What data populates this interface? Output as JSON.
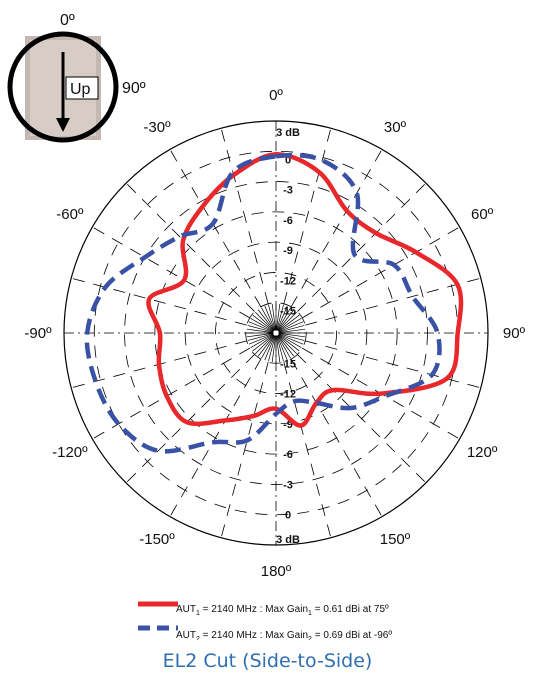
{
  "phone_indicator": {
    "top_label": "0º",
    "right_label": "90º",
    "device_label": "Up"
  },
  "caption": "EL2 Cut (Side-to-Side)",
  "legend": [
    {
      "prefix": "AUT",
      "sub": "1",
      "middle": " = 2140 MHz : Max Gain",
      "sub2": "1",
      "suffix": " = 0.61 dBi at 75º",
      "color": "#e8282b",
      "dash": "solid"
    },
    {
      "prefix": "AUT",
      "sub": "2",
      "middle": " = 2140 MHz : Max Gain",
      "sub2": "2",
      "suffix": " = 0.69 dBi at -96º",
      "color": "#3a52a6",
      "dash": "dashed"
    }
  ],
  "chart_data": {
    "type": "polar",
    "title": "EL2 Cut (Side-to-Side)",
    "angle_labels": [
      "0º",
      "30º",
      "60º",
      "90º",
      "120º",
      "150º",
      "180º",
      "-150º",
      "-120º",
      "-90º",
      "-60º",
      "-30º"
    ],
    "radial_labels": [
      "3 dB",
      "0",
      "-3",
      "-6",
      "-9",
      "-12",
      "-15"
    ],
    "radial_range_db": [
      -18,
      3
    ],
    "series": [
      {
        "name": "AUT1 = 2140 MHz : Max Gain1 = 0.61 dBi at 75º",
        "color": "#e8282b",
        "angles": [
          0,
          15,
          30,
          45,
          60,
          75,
          90,
          105,
          120,
          135,
          150,
          165,
          180,
          195,
          210,
          225,
          240,
          255,
          270,
          285,
          300,
          315,
          330,
          345
        ],
        "values_db": [
          -0.3,
          -1.5,
          -4.0,
          -4.0,
          -2.0,
          0.6,
          0.0,
          -0.5,
          -6.0,
          -10.0,
          -10.0,
          -8.5,
          -10.5,
          -9.5,
          -8.0,
          -5.5,
          -5.5,
          -6.0,
          -6.5,
          -5.0,
          -7.5,
          -5.0,
          -3.5,
          -1.8
        ]
      },
      {
        "name": "AUT2 = 2140 MHz : Max Gain2 = 0.69 dBi at -96º",
        "color": "#3a52a6",
        "angles": [
          0,
          15,
          30,
          45,
          60,
          75,
          90,
          105,
          120,
          135,
          150,
          165,
          180,
          195,
          210,
          225,
          240,
          255,
          270,
          285,
          300,
          315,
          330,
          345
        ],
        "values_db": [
          -0.5,
          -0.3,
          -2.0,
          -7.0,
          -4.5,
          -4.0,
          -2.0,
          -2.0,
          -5.5,
          -7.5,
          -10.0,
          -11.0,
          -10.0,
          -7.0,
          -5.5,
          -1.5,
          0.0,
          0.5,
          0.7,
          -0.5,
          -3.0,
          -4.5,
          -5.5,
          -1.5
        ]
      }
    ]
  }
}
